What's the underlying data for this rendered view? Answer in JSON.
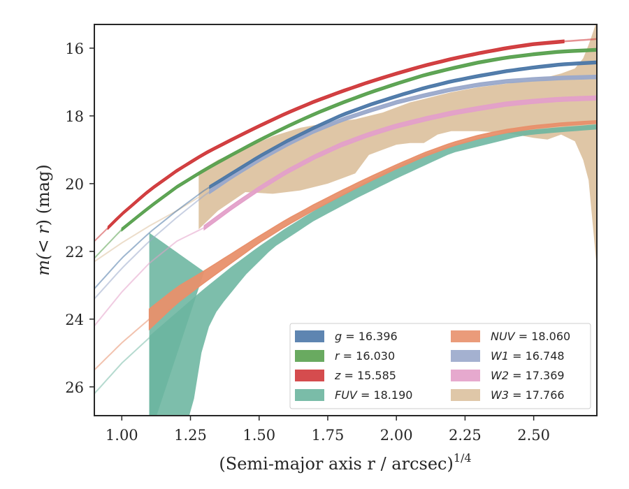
{
  "chart_data": {
    "type": "area",
    "xlabel": "(Semi-major axis r / arcsec)",
    "xlabel_superscript": "1/4",
    "ylabel_prefix": "m(",
    "ylabel_math": "< r",
    "ylabel_suffix": ") (mag)",
    "xlim": [
      0.9,
      2.73
    ],
    "ylim": [
      26.85,
      15.3
    ],
    "y_inverted": true,
    "xticks": [
      1.0,
      1.25,
      1.5,
      1.75,
      2.0,
      2.25,
      2.5
    ],
    "xtick_labels": [
      "1.00",
      "1.25",
      "1.50",
      "1.75",
      "2.00",
      "2.25",
      "2.50"
    ],
    "yticks": [
      16,
      18,
      20,
      22,
      24,
      26
    ],
    "ytick_labels": [
      "16",
      "18",
      "20",
      "22",
      "24",
      "26"
    ],
    "grid": false,
    "legend_position": "lower-right",
    "series": [
      {
        "name": "g",
        "value": "16.396",
        "color": "#4c78a8",
        "faint_until": 1.32,
        "width": 0.08,
        "x": [
          0.9,
          1.0,
          1.1,
          1.2,
          1.3,
          1.4,
          1.5,
          1.6,
          1.7,
          1.8,
          1.9,
          2.0,
          2.1,
          2.2,
          2.3,
          2.4,
          2.5,
          2.6,
          2.73
        ],
        "y": [
          23.1,
          22.2,
          21.45,
          20.8,
          20.2,
          19.7,
          19.2,
          18.75,
          18.35,
          17.98,
          17.68,
          17.42,
          17.18,
          16.98,
          16.82,
          16.68,
          16.57,
          16.48,
          16.42
        ]
      },
      {
        "name": "r",
        "value": "16.030",
        "color": "#59a14f",
        "faint_until": 1.0,
        "width": 0.08,
        "x": [
          0.9,
          1.0,
          1.1,
          1.2,
          1.3,
          1.4,
          1.5,
          1.6,
          1.7,
          1.8,
          1.9,
          2.0,
          2.1,
          2.2,
          2.3,
          2.4,
          2.5,
          2.6,
          2.73
        ],
        "y": [
          22.2,
          21.35,
          20.7,
          20.1,
          19.6,
          19.15,
          18.72,
          18.32,
          17.95,
          17.62,
          17.32,
          17.05,
          16.8,
          16.6,
          16.42,
          16.28,
          16.18,
          16.1,
          16.05
        ]
      },
      {
        "name": "z",
        "value": "15.585",
        "color": "#d0393b",
        "faint_until": 0.95,
        "faint_after": 2.61,
        "width": 0.08,
        "x": [
          0.9,
          1.0,
          1.1,
          1.2,
          1.3,
          1.4,
          1.5,
          1.6,
          1.7,
          1.8,
          1.9,
          2.0,
          2.1,
          2.2,
          2.3,
          2.4,
          2.5,
          2.61,
          2.73
        ],
        "y": [
          21.7,
          20.9,
          20.2,
          19.62,
          19.12,
          18.7,
          18.3,
          17.92,
          17.58,
          17.28,
          17.0,
          16.75,
          16.52,
          16.32,
          16.15,
          16.0,
          15.88,
          15.8,
          15.73
        ]
      },
      {
        "name": "NUV",
        "value": "18.060",
        "color": "#e8906b",
        "faint_until": 1.1,
        "width_points": [
          [
            1.1,
            0.6
          ],
          [
            1.3,
            0.35
          ],
          [
            1.5,
            0.2
          ],
          [
            2.0,
            0.12
          ],
          [
            2.73,
            0.08
          ]
        ],
        "x": [
          0.9,
          1.0,
          1.1,
          1.2,
          1.3,
          1.4,
          1.5,
          1.6,
          1.7,
          1.8,
          1.9,
          2.0,
          2.1,
          2.2,
          2.3,
          2.4,
          2.5,
          2.6,
          2.73
        ],
        "y": [
          25.5,
          24.7,
          24.0,
          23.3,
          22.75,
          22.2,
          21.65,
          21.15,
          20.7,
          20.28,
          19.88,
          19.5,
          19.15,
          18.85,
          18.62,
          18.45,
          18.33,
          18.25,
          18.18
        ]
      },
      {
        "name": "FUV",
        "value": "18.190",
        "color": "#6bb59f",
        "faint_until": 1.1,
        "width": 0.1,
        "x": [
          0.9,
          1.0,
          1.1,
          1.2,
          1.3,
          1.4,
          1.5,
          1.6,
          1.7,
          1.8,
          1.9,
          2.0,
          2.1,
          2.2,
          2.3,
          2.4,
          2.5,
          2.6,
          2.73
        ],
        "y": [
          26.2,
          25.3,
          24.55,
          23.85,
          23.15,
          22.5,
          21.9,
          21.35,
          20.85,
          20.38,
          19.95,
          19.55,
          19.2,
          18.92,
          18.7,
          18.55,
          18.45,
          18.38,
          18.3
        ],
        "band": {
          "x": [
            1.1,
            1.1,
            1.25,
            1.3,
            1.45,
            1.6,
            1.8,
            1.95,
            2.1,
            2.2,
            2.35,
            2.45,
            2.5,
            2.45,
            2.4,
            2.3,
            2.2,
            2.1,
            2.0,
            1.9,
            1.8,
            1.7,
            1.6,
            1.5,
            1.4,
            1.3,
            1.2,
            1.1
          ],
          "y_upper": [],
          "y_lower": []
        }
      },
      {
        "name": "W1",
        "value": "16.748",
        "color": "#9aa9cb",
        "faint_until": 1.32,
        "width": 0.1,
        "x": [
          0.9,
          1.0,
          1.1,
          1.2,
          1.3,
          1.4,
          1.5,
          1.6,
          1.7,
          1.8,
          1.9,
          2.0,
          2.1,
          2.2,
          2.3,
          2.4,
          2.5,
          2.6,
          2.73
        ],
        "y": [
          23.4,
          22.5,
          21.7,
          21.0,
          20.35,
          19.8,
          19.3,
          18.85,
          18.45,
          18.12,
          17.85,
          17.6,
          17.4,
          17.22,
          17.08,
          16.98,
          16.92,
          16.88,
          16.85
        ]
      },
      {
        "name": "W2",
        "value": "17.369",
        "color": "#e3a0c9",
        "faint_until": 1.3,
        "width": 0.12,
        "x": [
          0.9,
          1.0,
          1.1,
          1.2,
          1.3,
          1.4,
          1.5,
          1.6,
          1.7,
          1.8,
          1.9,
          2.0,
          2.1,
          2.2,
          2.3,
          2.4,
          2.5,
          2.6,
          2.73
        ],
        "y": [
          24.2,
          23.2,
          22.35,
          21.7,
          21.3,
          20.7,
          20.15,
          19.65,
          19.22,
          18.85,
          18.55,
          18.3,
          18.1,
          17.92,
          17.78,
          17.65,
          17.57,
          17.51,
          17.47
        ]
      },
      {
        "name": "W3",
        "value": "17.766",
        "color": "#dcc19e",
        "faint_until": 1.28,
        "x": [
          0.9,
          1.0,
          1.1,
          1.2,
          1.28
        ],
        "y": [
          22.3,
          21.75,
          21.25,
          20.8,
          20.4
        ],
        "band_x": [
          1.28,
          1.35,
          1.45,
          1.55,
          1.65,
          1.75,
          1.85,
          1.9,
          1.95,
          2.0,
          2.05,
          2.1,
          2.15,
          2.2,
          2.3,
          2.4,
          2.5,
          2.55,
          2.6,
          2.65,
          2.68,
          2.7,
          2.73
        ],
        "band_upper": [
          19.65,
          19.3,
          18.95,
          18.6,
          18.35,
          18.2,
          18.1,
          18.0,
          17.9,
          17.75,
          17.6,
          17.5,
          17.4,
          17.3,
          17.15,
          17.05,
          16.95,
          16.85,
          16.75,
          16.6,
          16.3,
          15.9,
          15.2
        ],
        "band_lower": [
          21.35,
          20.8,
          20.25,
          20.3,
          20.2,
          20.0,
          19.7,
          19.15,
          19.0,
          18.85,
          18.8,
          18.8,
          18.55,
          18.45,
          18.45,
          18.5,
          18.65,
          18.7,
          18.55,
          18.75,
          19.3,
          19.9,
          22.5
        ]
      }
    ]
  }
}
